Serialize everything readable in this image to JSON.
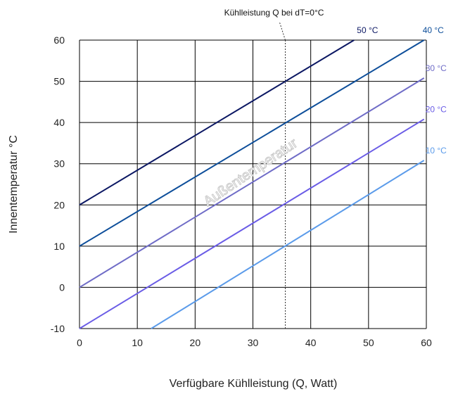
{
  "chart_data": {
    "type": "line",
    "title": "",
    "xlabel": "Verfügbare Kühlleistung (Q, Watt)",
    "ylabel": "Innentemperatur °C",
    "xlim": [
      0,
      60
    ],
    "ylim": [
      -10,
      60
    ],
    "xticks": [
      "0",
      "10",
      "20",
      "30",
      "40",
      "50",
      "60"
    ],
    "yticks": [
      "-10",
      "0",
      "10",
      "20",
      "30",
      "40",
      "50",
      "60"
    ],
    "grid": true,
    "curve_annotation": "Außentemperatur",
    "reference_line": {
      "label": "Kühlleistung Q bei dT=0°C",
      "x": 35.6
    },
    "series": [
      {
        "name": "10 °C",
        "color": "#5b9bea",
        "points": [
          [
            12.4,
            -10
          ],
          [
            59.6,
            30.8
          ]
        ]
      },
      {
        "name": "20 °C",
        "color": "#6a5ce6",
        "points": [
          [
            0,
            -10
          ],
          [
            59.6,
            40.8
          ]
        ]
      },
      {
        "name": "30 °C",
        "color": "#6f6cc7",
        "points": [
          [
            0,
            0
          ],
          [
            59.6,
            50.8
          ]
        ]
      },
      {
        "name": "40 °C",
        "color": "#0d4e9a",
        "points": [
          [
            0,
            10
          ],
          [
            59.6,
            60
          ]
        ]
      },
      {
        "name": "50 °C",
        "color": "#0b1763",
        "points": [
          [
            0,
            20
          ],
          [
            47.5,
            60
          ]
        ]
      }
    ]
  }
}
